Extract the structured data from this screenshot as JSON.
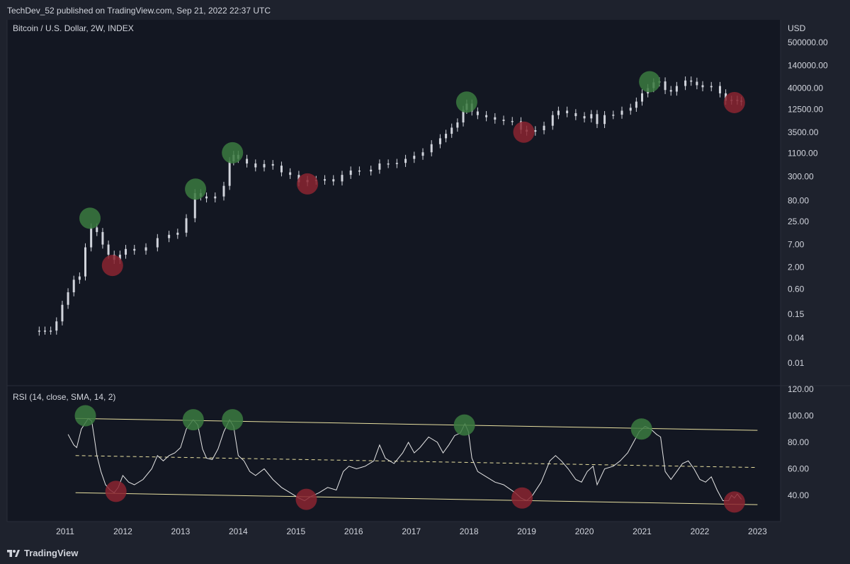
{
  "header": {
    "publish_text": "TechDev_52 published on TradingView.com, Sep 21, 2022 22:37 UTC"
  },
  "footer": {
    "brand": "TradingView"
  },
  "colors": {
    "background": "#131722",
    "frame": "#1e222d",
    "grid": "#2a2e39",
    "candle": "#d1d4dc",
    "peak_marker": "#3b7a3f",
    "trough_marker": "#8b2530",
    "trendline": "#e8e0a0"
  },
  "chart_data": [
    {
      "type": "candlestick",
      "title": "Bitcoin / U.S. Dollar, 2W, INDEX",
      "ylabel": "USD",
      "yscale": "log",
      "ytick_labels": [
        "500000.00",
        "140000.00",
        "40000.00",
        "12500.00",
        "3500.00",
        "1100.00",
        "300.00",
        "80.00",
        "25.00",
        "7.00",
        "2.00",
        "0.60",
        "0.15",
        "0.04",
        "0.01"
      ],
      "xtick_labels": [
        "2011",
        "2012",
        "2013",
        "2014",
        "2015",
        "2016",
        "2017",
        "2018",
        "2019",
        "2020",
        "2021",
        "2022",
        "2023"
      ],
      "series": [
        {
          "values": [
            [
              2010.55,
              0.06
            ],
            [
              2010.65,
              0.06
            ],
            [
              2010.75,
              0.06
            ],
            [
              2010.85,
              0.1
            ],
            [
              2010.95,
              0.25
            ],
            [
              2011.05,
              0.5
            ],
            [
              2011.15,
              1
            ],
            [
              2011.25,
              1.2
            ],
            [
              2011.35,
              6
            ],
            [
              2011.45,
              18
            ],
            [
              2011.55,
              14
            ],
            [
              2011.65,
              7
            ],
            [
              2011.75,
              4
            ],
            [
              2011.85,
              3
            ],
            [
              2011.95,
              4
            ],
            [
              2012.05,
              5.5
            ],
            [
              2012.2,
              5
            ],
            [
              2012.4,
              6
            ],
            [
              2012.6,
              10
            ],
            [
              2012.8,
              12
            ],
            [
              2012.95,
              13.5
            ],
            [
              2013.1,
              30
            ],
            [
              2013.25,
              120
            ],
            [
              2013.35,
              100
            ],
            [
              2013.45,
              90
            ],
            [
              2013.6,
              100
            ],
            [
              2013.75,
              180
            ],
            [
              2013.85,
              700
            ],
            [
              2013.92,
              1000
            ],
            [
              2014.0,
              800
            ],
            [
              2014.15,
              620
            ],
            [
              2014.3,
              500
            ],
            [
              2014.45,
              600
            ],
            [
              2014.6,
              550
            ],
            [
              2014.75,
              380
            ],
            [
              2014.9,
              330
            ],
            [
              2015.05,
              220
            ],
            [
              2015.2,
              250
            ],
            [
              2015.35,
              240
            ],
            [
              2015.5,
              260
            ],
            [
              2015.65,
              230
            ],
            [
              2015.8,
              330
            ],
            [
              2015.95,
              420
            ],
            [
              2016.1,
              400
            ],
            [
              2016.3,
              440
            ],
            [
              2016.45,
              620
            ],
            [
              2016.6,
              600
            ],
            [
              2016.75,
              640
            ],
            [
              2016.9,
              800
            ],
            [
              2017.05,
              950
            ],
            [
              2017.2,
              1150
            ],
            [
              2017.35,
              1800
            ],
            [
              2017.5,
              2500
            ],
            [
              2017.6,
              3200
            ],
            [
              2017.7,
              4500
            ],
            [
              2017.8,
              6000
            ],
            [
              2017.9,
              12000
            ],
            [
              2017.96,
              17000
            ],
            [
              2018.05,
              11000
            ],
            [
              2018.15,
              9000
            ],
            [
              2018.3,
              8000
            ],
            [
              2018.45,
              7000
            ],
            [
              2018.6,
              6500
            ],
            [
              2018.75,
              6400
            ],
            [
              2018.9,
              4000
            ],
            [
              2019.0,
              3600
            ],
            [
              2019.15,
              3900
            ],
            [
              2019.3,
              5000
            ],
            [
              2019.45,
              9000
            ],
            [
              2019.55,
              11500
            ],
            [
              2019.7,
              10000
            ],
            [
              2019.85,
              8500
            ],
            [
              2020.0,
              7500
            ],
            [
              2020.12,
              9500
            ],
            [
              2020.22,
              5500
            ],
            [
              2020.35,
              9000
            ],
            [
              2020.5,
              9200
            ],
            [
              2020.65,
              11500
            ],
            [
              2020.8,
              13500
            ],
            [
              2020.9,
              19000
            ],
            [
              2021.0,
              30000
            ],
            [
              2021.1,
              40000
            ],
            [
              2021.2,
              55000
            ],
            [
              2021.3,
              58000
            ],
            [
              2021.4,
              36000
            ],
            [
              2021.5,
              33000
            ],
            [
              2021.6,
              45000
            ],
            [
              2021.75,
              61000
            ],
            [
              2021.85,
              57000
            ],
            [
              2021.95,
              47000
            ],
            [
              2022.05,
              42000
            ],
            [
              2022.2,
              45000
            ],
            [
              2022.35,
              30000
            ],
            [
              2022.45,
              20000
            ],
            [
              2022.55,
              21000
            ],
            [
              2022.65,
              20000
            ],
            [
              2022.72,
              19000
            ]
          ]
        }
      ],
      "markers": {
        "peaks": [
          [
            2011.43,
            30
          ],
          [
            2013.26,
            150
          ],
          [
            2013.9,
            1120
          ],
          [
            2017.96,
            18500
          ],
          [
            2021.13,
            57000
          ]
        ],
        "troughs": [
          [
            2011.82,
            2.2
          ],
          [
            2015.2,
            200
          ],
          [
            2018.95,
            3500
          ],
          [
            2022.6,
            18000
          ]
        ]
      }
    },
    {
      "type": "line",
      "title": "RSI (14, close, SMA, 14, 2)",
      "ylim": [
        28,
        122
      ],
      "ytick_labels": [
        "120.00",
        "100.00",
        "80.00",
        "60.00",
        "40.00"
      ],
      "series": [
        {
          "values": [
            [
              2011.05,
              86
            ],
            [
              2011.1,
              82
            ],
            [
              2011.15,
              78
            ],
            [
              2011.2,
              76
            ],
            [
              2011.28,
              90
            ],
            [
              2011.4,
              98
            ],
            [
              2011.46,
              96
            ],
            [
              2011.5,
              85
            ],
            [
              2011.55,
              70
            ],
            [
              2011.62,
              58
            ],
            [
              2011.7,
              48
            ],
            [
              2011.78,
              44
            ],
            [
              2011.85,
              42
            ],
            [
              2011.92,
              46
            ],
            [
              2012.0,
              55
            ],
            [
              2012.1,
              50
            ],
            [
              2012.2,
              48
            ],
            [
              2012.35,
              52
            ],
            [
              2012.5,
              60
            ],
            [
              2012.6,
              70
            ],
            [
              2012.7,
              66
            ],
            [
              2012.8,
              70
            ],
            [
              2012.9,
              72
            ],
            [
              2013.0,
              76
            ],
            [
              2013.1,
              90
            ],
            [
              2013.22,
              97
            ],
            [
              2013.3,
              93
            ],
            [
              2013.38,
              75
            ],
            [
              2013.45,
              68
            ],
            [
              2013.55,
              67
            ],
            [
              2013.65,
              75
            ],
            [
              2013.75,
              88
            ],
            [
              2013.85,
              97
            ],
            [
              2013.92,
              92
            ],
            [
              2014.0,
              70
            ],
            [
              2014.1,
              66
            ],
            [
              2014.2,
              58
            ],
            [
              2014.3,
              55
            ],
            [
              2014.45,
              60
            ],
            [
              2014.6,
              52
            ],
            [
              2014.75,
              46
            ],
            [
              2014.9,
              42
            ],
            [
              2015.05,
              38
            ],
            [
              2015.15,
              36
            ],
            [
              2015.25,
              39
            ],
            [
              2015.4,
              42
            ],
            [
              2015.55,
              46
            ],
            [
              2015.7,
              44
            ],
            [
              2015.82,
              58
            ],
            [
              2015.92,
              62
            ],
            [
              2016.05,
              60
            ],
            [
              2016.2,
              62
            ],
            [
              2016.35,
              66
            ],
            [
              2016.45,
              78
            ],
            [
              2016.55,
              68
            ],
            [
              2016.7,
              64
            ],
            [
              2016.85,
              72
            ],
            [
              2016.95,
              80
            ],
            [
              2017.05,
              72
            ],
            [
              2017.15,
              76
            ],
            [
              2017.3,
              84
            ],
            [
              2017.45,
              80
            ],
            [
              2017.55,
              72
            ],
            [
              2017.65,
              78
            ],
            [
              2017.75,
              85
            ],
            [
              2017.85,
              87
            ],
            [
              2017.93,
              94
            ],
            [
              2017.99,
              88
            ],
            [
              2018.05,
              68
            ],
            [
              2018.15,
              58
            ],
            [
              2018.3,
              54
            ],
            [
              2018.45,
              50
            ],
            [
              2018.6,
              48
            ],
            [
              2018.8,
              42
            ],
            [
              2018.9,
              38
            ],
            [
              2019.0,
              36
            ],
            [
              2019.1,
              40
            ],
            [
              2019.25,
              50
            ],
            [
              2019.4,
              66
            ],
            [
              2019.5,
              70
            ],
            [
              2019.6,
              66
            ],
            [
              2019.72,
              60
            ],
            [
              2019.85,
              52
            ],
            [
              2019.95,
              50
            ],
            [
              2020.05,
              58
            ],
            [
              2020.15,
              62
            ],
            [
              2020.22,
              48
            ],
            [
              2020.35,
              60
            ],
            [
              2020.5,
              62
            ],
            [
              2020.62,
              66
            ],
            [
              2020.75,
              72
            ],
            [
              2020.85,
              80
            ],
            [
              2020.95,
              88
            ],
            [
              2021.05,
              92
            ],
            [
              2021.15,
              90
            ],
            [
              2021.25,
              86
            ],
            [
              2021.32,
              84
            ],
            [
              2021.4,
              58
            ],
            [
              2021.5,
              52
            ],
            [
              2021.6,
              58
            ],
            [
              2021.7,
              64
            ],
            [
              2021.8,
              66
            ],
            [
              2021.9,
              60
            ],
            [
              2022.0,
              52
            ],
            [
              2022.1,
              50
            ],
            [
              2022.2,
              54
            ],
            [
              2022.3,
              44
            ],
            [
              2022.4,
              36
            ],
            [
              2022.5,
              36
            ],
            [
              2022.55,
              40
            ],
            [
              2022.6,
              38
            ],
            [
              2022.65,
              41
            ],
            [
              2022.72,
              37
            ]
          ]
        }
      ],
      "trendlines": {
        "upper": [
          [
            2011.18,
            98
          ],
          [
            2023.0,
            89
          ]
        ],
        "middle": [
          [
            2011.18,
            70
          ],
          [
            2023.0,
            61
          ]
        ],
        "lower": [
          [
            2011.18,
            42
          ],
          [
            2023.0,
            33
          ]
        ]
      },
      "markers": {
        "peaks": [
          [
            2011.35,
            100
          ],
          [
            2013.22,
            97
          ],
          [
            2013.9,
            97
          ],
          [
            2017.92,
            93
          ],
          [
            2020.99,
            90
          ]
        ],
        "troughs": [
          [
            2011.88,
            43
          ],
          [
            2015.18,
            37
          ],
          [
            2018.92,
            38
          ],
          [
            2022.6,
            35
          ]
        ]
      }
    }
  ]
}
